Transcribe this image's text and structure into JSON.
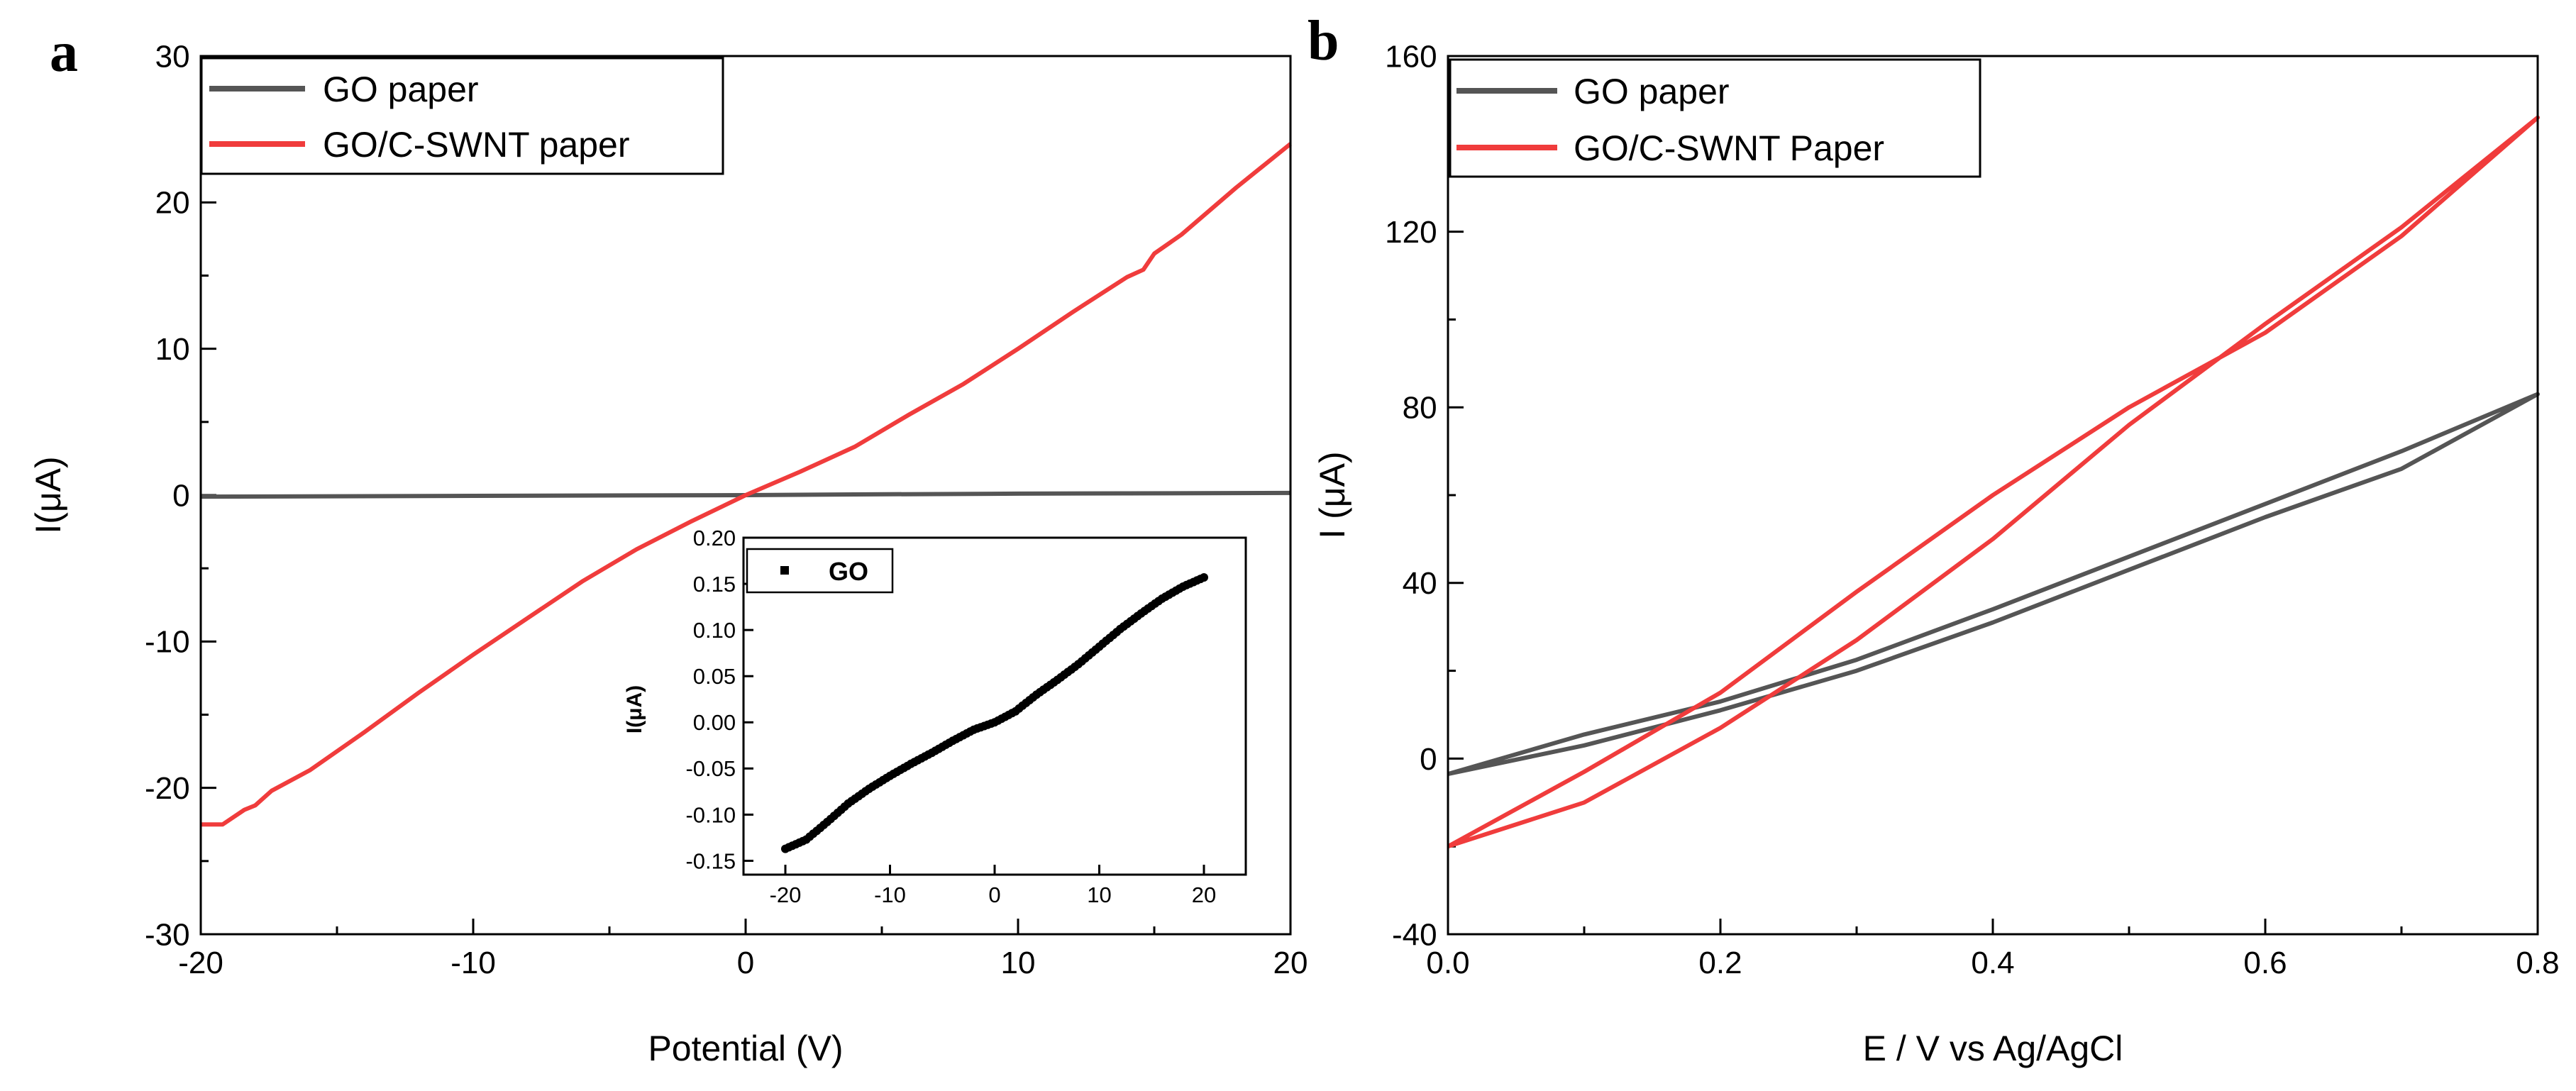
{
  "figure": {
    "colors": {
      "go": "#555555",
      "cswnt": "#f03c3c",
      "inset": "#000000",
      "axis": "#000000"
    }
  },
  "chart_data": [
    {
      "type": "line",
      "panel_label": "a",
      "title": "",
      "xlabel": "Potential (V)",
      "ylabel": "I(μA)",
      "xlim": [
        -20,
        20
      ],
      "ylim": [
        -30,
        30
      ],
      "xticks": [
        -20,
        -10,
        0,
        10,
        20
      ],
      "xtick_labels": [
        "-20",
        "-10",
        "0",
        "10",
        "20"
      ],
      "yticks": [
        -30,
        -20,
        -10,
        0,
        10,
        20,
        30
      ],
      "ytick_labels": [
        "-30",
        "-20",
        "-10",
        "0",
        "10",
        "20",
        "30"
      ],
      "grid": false,
      "legend_position": "top-left",
      "series": [
        {
          "name": "GO paper",
          "color": "#555555",
          "x": [
            -20,
            -10,
            0,
            4,
            10,
            20
          ],
          "y": [
            -0.1,
            -0.05,
            0.0,
            0.05,
            0.1,
            0.15
          ]
        },
        {
          "name": "GO/C-SWNT paper",
          "color": "#f03c3c",
          "x": [
            -20,
            -19.2,
            -18.4,
            -18.0,
            -17.4,
            -16,
            -14,
            -12,
            -10,
            -8,
            -6,
            -4,
            -2,
            0,
            2,
            4,
            6,
            8,
            10,
            12,
            14,
            14.6,
            15,
            16,
            18,
            20
          ],
          "y": [
            -22.5,
            -22.5,
            -21.5,
            -21.2,
            -20.2,
            -18.8,
            -16.2,
            -13.5,
            -10.9,
            -8.4,
            -5.9,
            -3.7,
            -1.8,
            0.0,
            1.6,
            3.3,
            5.5,
            7.6,
            10.0,
            12.5,
            14.9,
            15.4,
            16.5,
            17.8,
            21.0,
            24.0
          ]
        }
      ],
      "inset": {
        "type": "scatter",
        "xlabel": "",
        "ylabel": "I(μA)",
        "xlim": [
          -24,
          24
        ],
        "ylim": [
          -0.165,
          0.2
        ],
        "xticks": [
          -20,
          -10,
          0,
          10,
          20
        ],
        "xtick_labels": [
          "-20",
          "-10",
          "0",
          "10",
          "20"
        ],
        "yticks": [
          -0.15,
          -0.1,
          -0.05,
          0.0,
          0.05,
          0.1,
          0.15,
          0.2
        ],
        "ytick_labels": [
          "-0.15",
          "-0.10",
          "-0.05",
          "0.00",
          "0.05",
          "0.10",
          "0.15",
          "0.20"
        ],
        "legend_position": "top-left",
        "series": [
          {
            "name": "GO",
            "color": "#000000",
            "x": [
              -20,
              -18,
              -16,
              -14,
              -12,
              -10,
              -8,
              -6,
              -4,
              -2,
              0,
              2,
              4,
              6,
              8,
              10,
              12,
              14,
              16,
              18,
              20
            ],
            "y": [
              -0.137,
              -0.127,
              -0.108,
              -0.088,
              -0.072,
              -0.058,
              -0.045,
              -0.033,
              -0.02,
              -0.008,
              0.0,
              0.012,
              0.03,
              0.046,
              0.063,
              0.082,
              0.101,
              0.118,
              0.134,
              0.147,
              0.157
            ]
          }
        ]
      }
    },
    {
      "type": "line",
      "panel_label": "b",
      "title": "",
      "xlabel": "E / V vs Ag/AgCl",
      "ylabel": "I (μA)",
      "xlim": [
        0.0,
        0.8
      ],
      "ylim": [
        -40,
        160
      ],
      "xticks": [
        0.0,
        0.2,
        0.4,
        0.6,
        0.8
      ],
      "xtick_labels": [
        "0.0",
        "0.2",
        "0.4",
        "0.6",
        "0.8"
      ],
      "yticks": [
        -40,
        0,
        40,
        80,
        120,
        160
      ],
      "ytick_labels": [
        "-40",
        "0",
        "40",
        "80",
        "120",
        "160"
      ],
      "grid": false,
      "legend_position": "top-left",
      "series": [
        {
          "name": "GO paper",
          "color": "#555555",
          "x": [
            0.0,
            0.1,
            0.2,
            0.3,
            0.4,
            0.5,
            0.6,
            0.7,
            0.8,
            0.7,
            0.6,
            0.5,
            0.4,
            0.3,
            0.2,
            0.1,
            0.0
          ],
          "y": [
            -3.5,
            5.5,
            13,
            22.5,
            34,
            46,
            58,
            70,
            83,
            66,
            55,
            43,
            31,
            20,
            11,
            3,
            -3.5
          ]
        },
        {
          "name": "GO/C-SWNT Paper",
          "color": "#f03c3c",
          "x": [
            0.0,
            0.1,
            0.2,
            0.3,
            0.4,
            0.5,
            0.6,
            0.7,
            0.8,
            0.7,
            0.6,
            0.5,
            0.4,
            0.3,
            0.2,
            0.1,
            0.0
          ],
          "y": [
            -20,
            -3,
            15,
            38,
            60,
            80,
            97,
            119,
            146,
            121,
            99,
            76,
            50,
            27,
            7,
            -10,
            -20
          ]
        }
      ]
    }
  ]
}
